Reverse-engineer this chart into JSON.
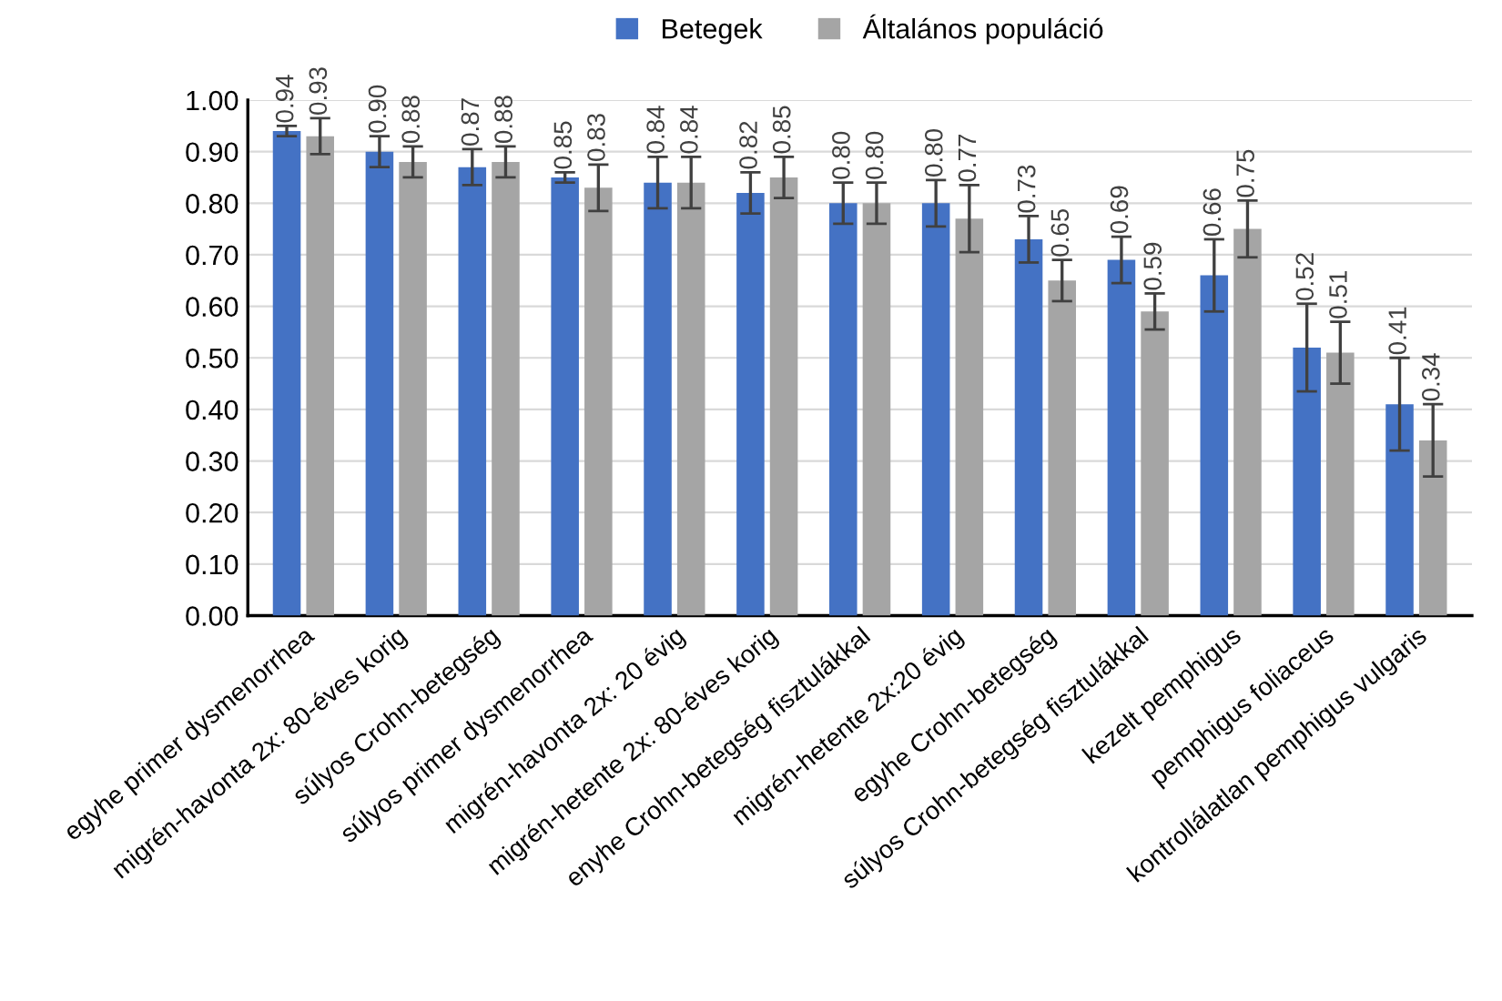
{
  "chart_data": {
    "type": "bar",
    "categories": [
      "egyhe primer dysmenorrhea",
      "migrén-havonta 2x: 80-éves korig",
      "súlyos Crohn-betegség",
      "súlyos primer dysmenorrhea",
      "migrén-havonta 2x: 20 évig",
      "migrén-hetente 2x: 80-éves korig",
      "enyhe Crohn-betegség fisztulákkal",
      "migrén-hetente 2x:20 évig",
      "egyhe Crohn-betegség",
      "súlyos Crohn-betegség fisztulákkal",
      "kezelt pemphigus",
      "pemphigus foliaceus",
      "kontrollálatlan pemphigus vulgaris"
    ],
    "series": [
      {
        "name": "Betegek",
        "color": "#4472c4",
        "values": [
          0.94,
          0.9,
          0.87,
          0.85,
          0.84,
          0.82,
          0.8,
          0.8,
          0.73,
          0.69,
          0.66,
          0.52,
          0.41
        ],
        "errors": [
          0.01,
          0.03,
          0.035,
          0.01,
          0.05,
          0.04,
          0.04,
          0.045,
          0.045,
          0.045,
          0.07,
          0.085,
          0.09
        ],
        "value_labels": [
          "0.94",
          "0.90",
          "0.87",
          "0.85",
          "0.84",
          "0.82",
          "0.80",
          "0.80",
          "0.73",
          "0.69",
          "0.66",
          "0.52",
          "0.41"
        ]
      },
      {
        "name": "Általános populáció",
        "color": "#a5a5a5",
        "values": [
          0.93,
          0.88,
          0.88,
          0.83,
          0.84,
          0.85,
          0.8,
          0.77,
          0.65,
          0.59,
          0.75,
          0.51,
          0.34
        ],
        "errors": [
          0.035,
          0.03,
          0.03,
          0.045,
          0.05,
          0.04,
          0.04,
          0.065,
          0.04,
          0.035,
          0.055,
          0.06,
          0.07
        ],
        "value_labels": [
          "0.93",
          "0.88",
          "0.88",
          "0.83",
          "0.84",
          "0.85",
          "0.80",
          "0.77",
          "0.65",
          "0.59",
          "0.75",
          "0.51",
          "0.34"
        ]
      }
    ],
    "ylim": [
      0,
      1.0
    ],
    "yticks": [
      {
        "value": 0,
        "label": "0.00"
      },
      {
        "value": 0.1,
        "label": "0.10"
      },
      {
        "value": 0.2,
        "label": "0.20"
      },
      {
        "value": 0.3,
        "label": "0.30"
      },
      {
        "value": 0.4,
        "label": "0.40"
      },
      {
        "value": 0.5,
        "label": "0.50"
      },
      {
        "value": 0.6,
        "label": "0.60"
      },
      {
        "value": 0.7,
        "label": "0.70"
      },
      {
        "value": 0.8,
        "label": "0.80"
      },
      {
        "value": 0.9,
        "label": "0.90"
      },
      {
        "value": 1.0,
        "label": "1.00"
      }
    ],
    "grid": "y",
    "legend": "top"
  }
}
